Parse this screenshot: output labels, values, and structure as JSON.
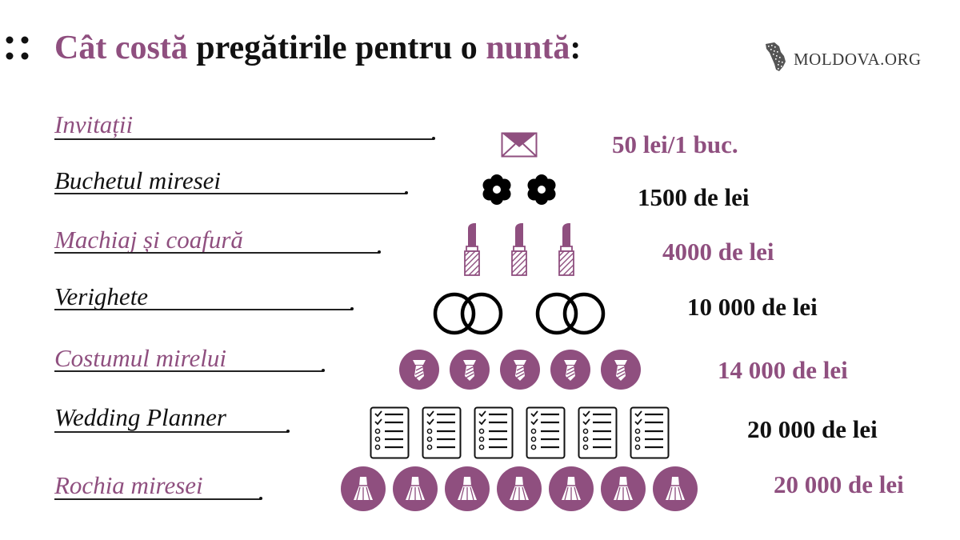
{
  "header": {
    "title_part1": "Cât costă",
    "title_part2": " pregătirile pentru o ",
    "title_part3": "nuntă",
    "title_part4": ":",
    "logo_text": "MOLDOVA.ORG"
  },
  "colors": {
    "accent": "#8f4f7f",
    "dark": "#111111"
  },
  "rows": [
    {
      "label": "Invitații",
      "price": "50 lei/1 buc.",
      "icon": "envelope-icon",
      "icon_count": 1
    },
    {
      "label": "Buchetul miresei",
      "price": "1500 de lei",
      "icon": "flower-icon",
      "icon_count": 2
    },
    {
      "label": "Machiaj și coafură",
      "price": "4000 de lei",
      "icon": "lipstick-icon",
      "icon_count": 3
    },
    {
      "label": "Verighete",
      "price": "10 000 de lei",
      "icon": "rings-icon",
      "icon_count": 2
    },
    {
      "label": "Costumul mirelui",
      "price": "14 000 de lei",
      "icon": "tie-icon",
      "icon_count": 5
    },
    {
      "label": "Wedding Planner",
      "price": "20 000 de lei",
      "icon": "checklist-icon",
      "icon_count": 6
    },
    {
      "label": "Rochia miresei",
      "price": "20 000 de lei",
      "icon": "dress-icon",
      "icon_count": 7
    }
  ]
}
